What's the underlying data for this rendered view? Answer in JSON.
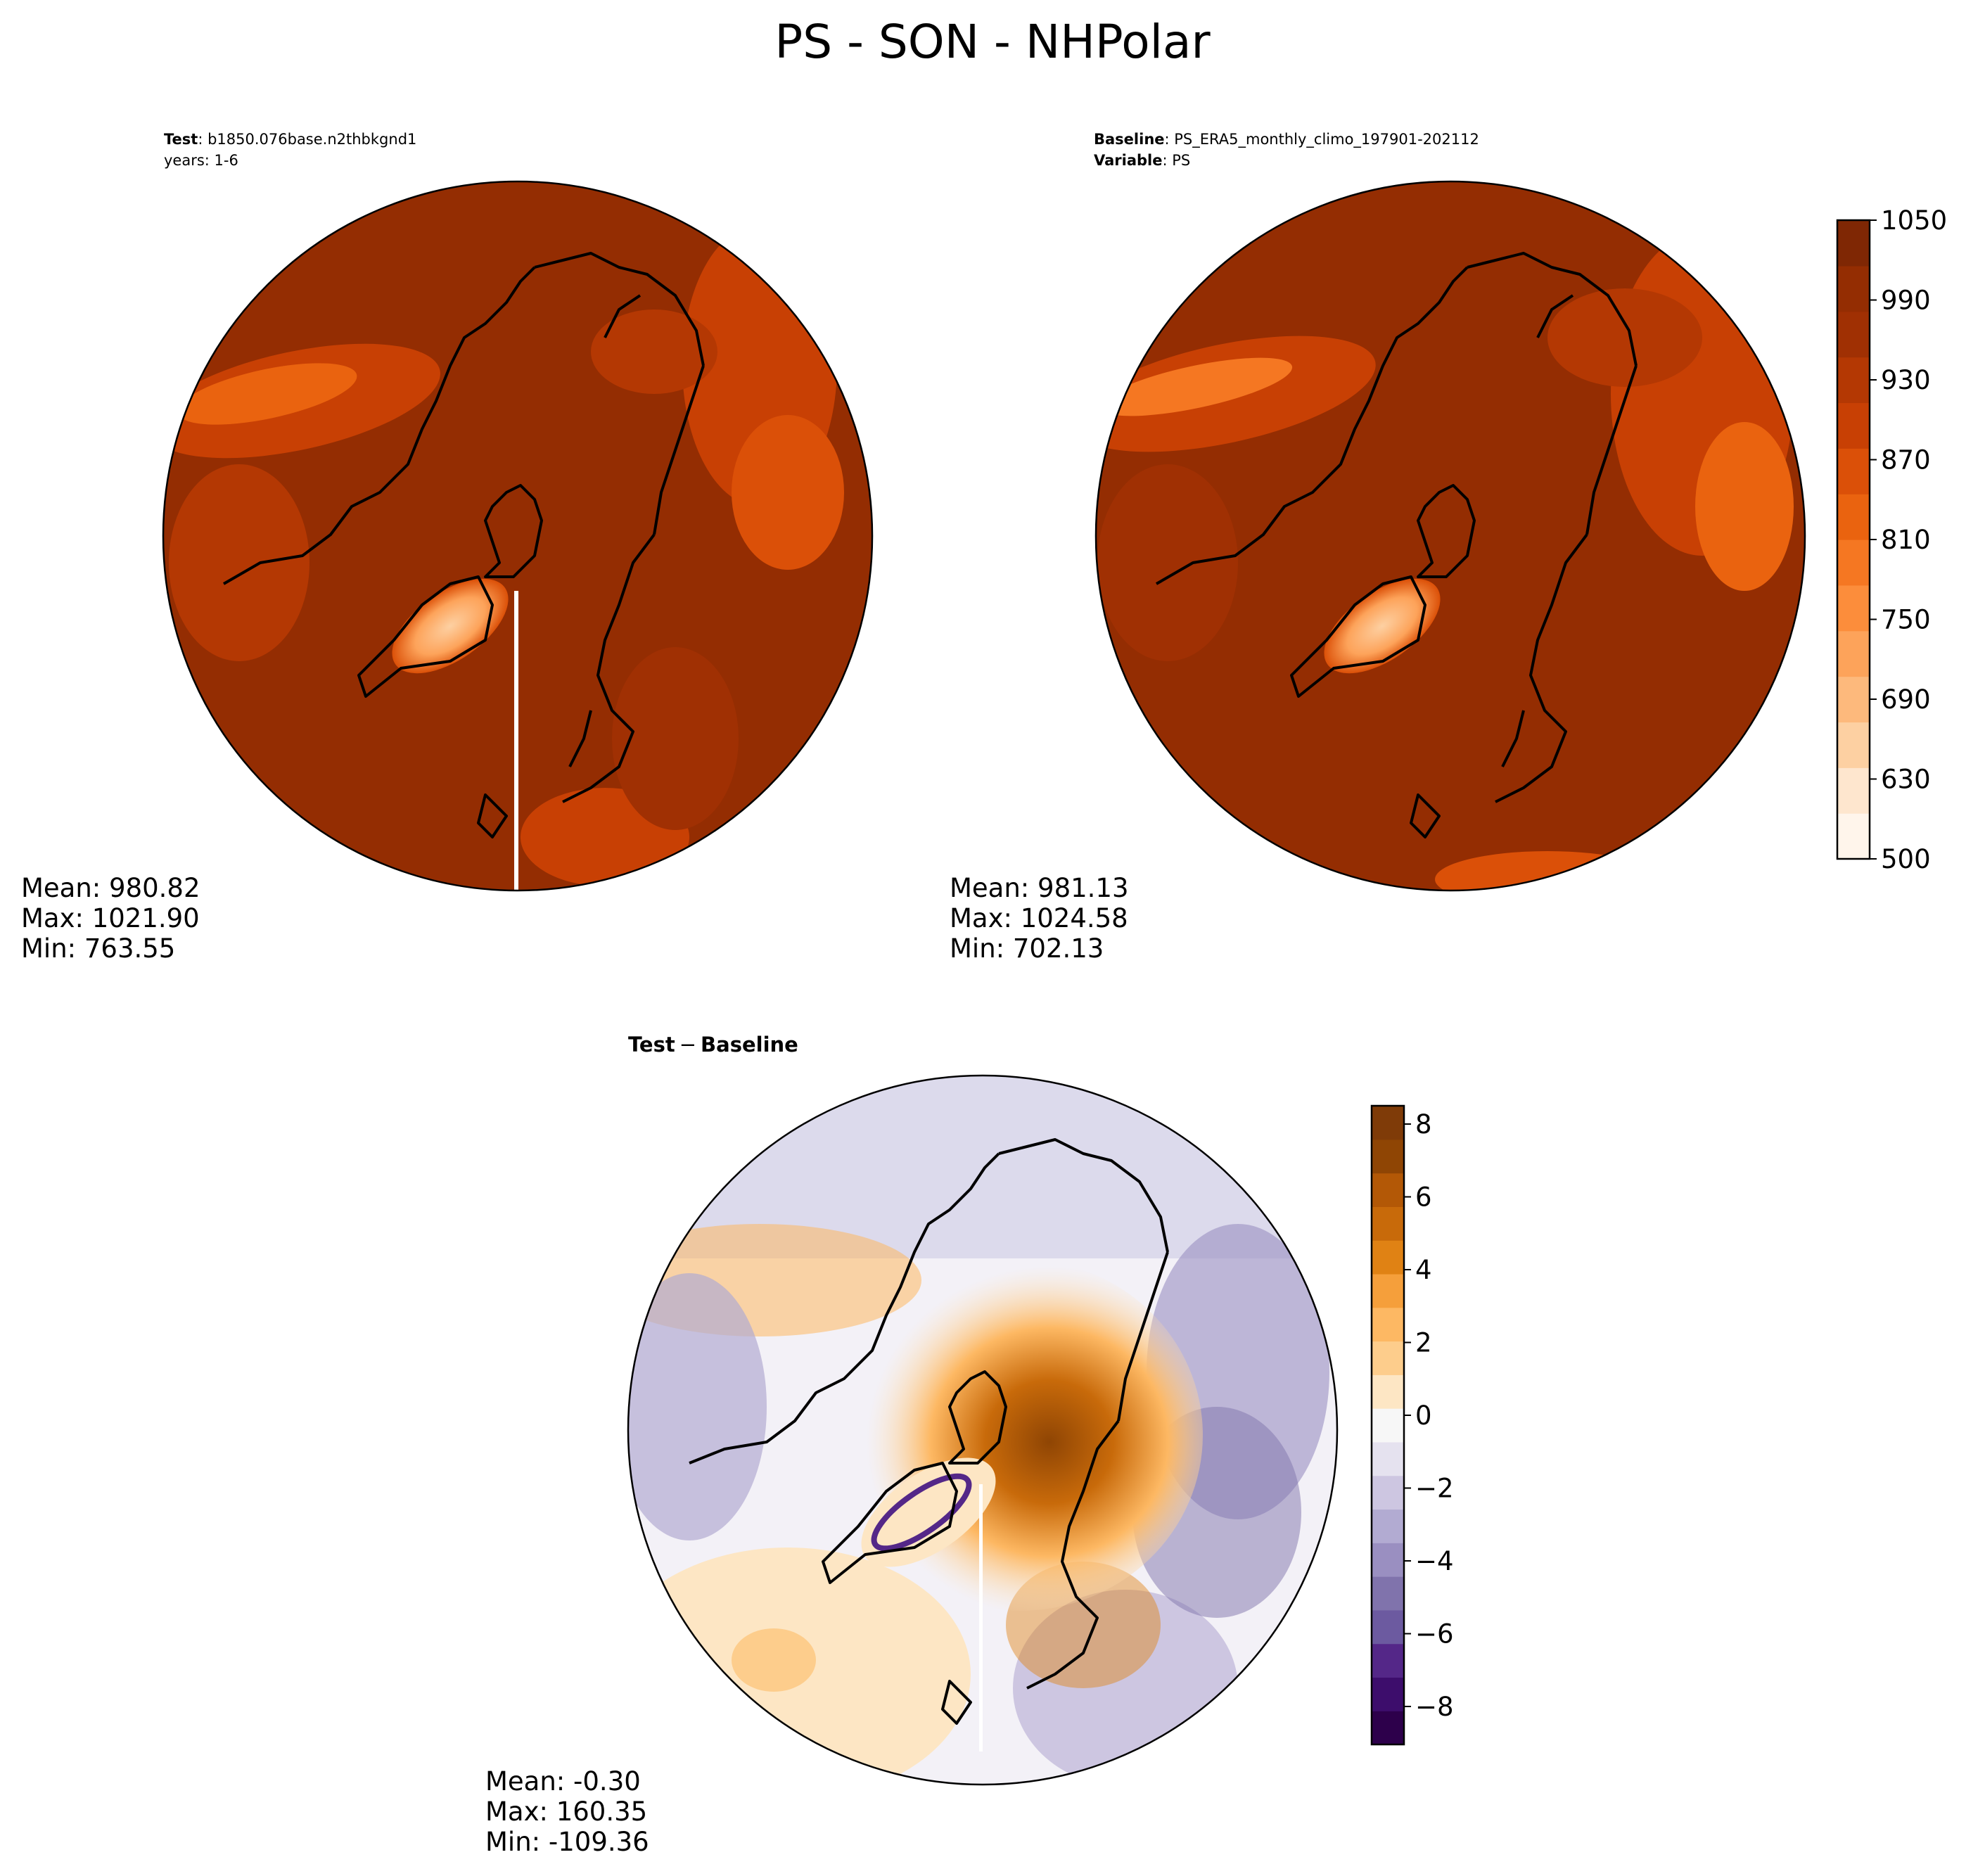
{
  "figure": {
    "title": "PS - SON - NHPolar"
  },
  "panels": {
    "test": {
      "header_bold": "Test",
      "header_text": ": b1850.076base.n2thbkgnd1",
      "header_line2": "years: 1-6",
      "stats": {
        "mean": "Mean: 980.82",
        "max": "Max: 1021.90",
        "min": "Min: 763.55"
      }
    },
    "baseline": {
      "header_bold": "Baseline",
      "header_text": ": PS_ERA5_monthly_climo_197901-202112",
      "header2_bold": "Variable",
      "header2_text": ": PS",
      "stats": {
        "mean": "Mean: 981.13",
        "max": "Max: 1024.58",
        "min": "Min: 702.13"
      }
    },
    "diff": {
      "header_a": "Test",
      "header_op": "−",
      "header_b": "Baseline",
      "stats": {
        "mean": "Mean: -0.30",
        "max": "Max: 160.35",
        "min": "Min: -109.36"
      }
    }
  },
  "colorbars": {
    "ps": {
      "ticks": [
        "1050",
        "990",
        "930",
        "870",
        "810",
        "750",
        "690",
        "630",
        "500"
      ],
      "colors": [
        "#fff5eb",
        "#fee6ce",
        "#fdd0a2",
        "#fdb97c",
        "#fda35a",
        "#fc8d3b",
        "#f57722",
        "#ea630f",
        "#db5008",
        "#c84004",
        "#b43803",
        "#a03003",
        "#942d02",
        "#7f2704"
      ]
    },
    "diff": {
      "ticks": [
        "8",
        "6",
        "4",
        "2",
        "0",
        "−2",
        "−4",
        "−6",
        "−8"
      ],
      "colors": [
        "#2d004b",
        "#3d0d6c",
        "#542788",
        "#6c5aa0",
        "#8073ac",
        "#9a8fc1",
        "#b2abd2",
        "#cdc6e1",
        "#e5e2ef",
        "#f7f7f7",
        "#fde6c4",
        "#fdcd8c",
        "#fdb863",
        "#f59f3b",
        "#e08214",
        "#c86a0a",
        "#b35806",
        "#8f4504",
        "#7f3b08"
      ]
    }
  }
}
